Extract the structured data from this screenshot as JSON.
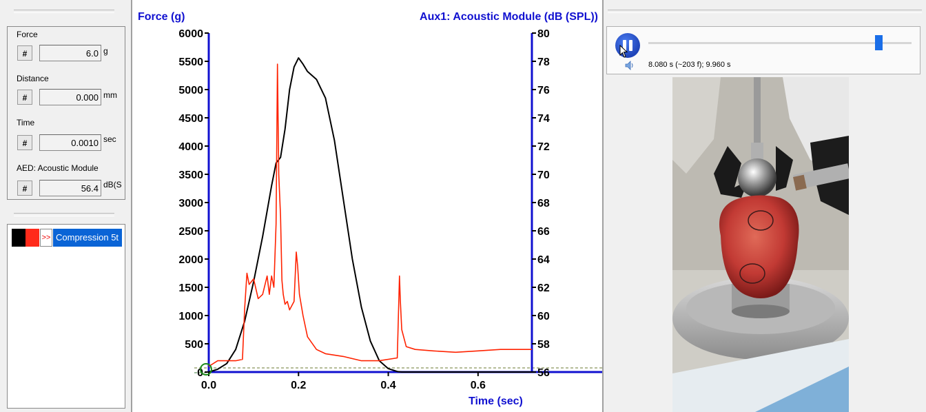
{
  "readouts": [
    {
      "label": "Force",
      "button": "#",
      "value": "6.0",
      "unit": "g"
    },
    {
      "label": "Distance",
      "button": "#",
      "value": "0.000",
      "unit": "mm"
    },
    {
      "label": "Time",
      "button": "#",
      "value": "0.0010",
      "unit": "sec"
    },
    {
      "label": "AED: Acoustic Module",
      "button": "#",
      "value": "56.4",
      "unit": "dB(S"
    }
  ],
  "test_list": {
    "items": [
      {
        "marker": ">>",
        "label": "Compression 5t"
      }
    ]
  },
  "player": {
    "time_text": "8.080 s (~203 f); 9.960 s",
    "position_fraction": 0.87
  },
  "colors": {
    "force_line": "#000000",
    "acoustic_line": "#ff2200",
    "axis": "#1010d0",
    "selection": "#0a64d6"
  },
  "chart_data": {
    "type": "line",
    "title_left": "Force (g)",
    "title_right": "Aux1: Acoustic Module (dB (SPL))",
    "xlabel": "Time (sec)",
    "xlim": [
      0,
      0.72
    ],
    "x_ticks": [
      "0.0",
      "0.2",
      "0.4",
      "0.6"
    ],
    "y_left_ticks": [
      "0",
      "500",
      "1000",
      "1500",
      "2000",
      "2500",
      "3000",
      "3500",
      "4000",
      "4500",
      "5000",
      "5500",
      "6000"
    ],
    "y_left_lim": [
      0,
      6000
    ],
    "y_right_ticks": [
      "56",
      "58",
      "60",
      "62",
      "64",
      "66",
      "68",
      "70",
      "72",
      "74",
      "76",
      "78",
      "80"
    ],
    "y_right_lim": [
      56,
      80
    ],
    "series": [
      {
        "axis": "left",
        "color": "#000000",
        "x": [
          0.0,
          0.02,
          0.04,
          0.06,
          0.08,
          0.1,
          0.12,
          0.14,
          0.15,
          0.155,
          0.16,
          0.17,
          0.18,
          0.19,
          0.2,
          0.21,
          0.22,
          0.24,
          0.26,
          0.28,
          0.3,
          0.32,
          0.34,
          0.36,
          0.38,
          0.4,
          0.42,
          0.43,
          0.72
        ],
        "y": [
          0,
          50,
          150,
          400,
          900,
          1600,
          2400,
          3300,
          3700,
          3750,
          3800,
          4300,
          5000,
          5400,
          5560,
          5450,
          5320,
          5180,
          4850,
          4100,
          3050,
          2000,
          1150,
          550,
          200,
          60,
          10,
          0,
          0
        ]
      },
      {
        "axis": "right",
        "color": "#ff2200",
        "x": [
          0.0,
          0.01,
          0.02,
          0.04,
          0.06,
          0.075,
          0.08,
          0.085,
          0.09,
          0.1,
          0.11,
          0.12,
          0.13,
          0.135,
          0.14,
          0.145,
          0.15,
          0.153,
          0.156,
          0.16,
          0.163,
          0.166,
          0.17,
          0.175,
          0.18,
          0.19,
          0.195,
          0.198,
          0.202,
          0.21,
          0.22,
          0.24,
          0.26,
          0.3,
          0.34,
          0.38,
          0.42,
          0.425,
          0.427,
          0.43,
          0.44,
          0.46,
          0.5,
          0.55,
          0.6,
          0.65,
          0.7,
          0.72
        ],
        "y": [
          56.4,
          56.6,
          56.8,
          56.8,
          56.8,
          56.9,
          60.5,
          63.0,
          62.2,
          62.6,
          61.2,
          61.5,
          62.8,
          61.5,
          62.8,
          62.0,
          66.5,
          77.8,
          70.0,
          67.0,
          62.5,
          61.5,
          60.8,
          61.0,
          60.4,
          61.0,
          64.5,
          63.5,
          61.5,
          60.0,
          58.5,
          57.6,
          57.3,
          57.1,
          56.8,
          56.8,
          57.0,
          62.8,
          61.0,
          59.0,
          57.8,
          57.6,
          57.5,
          57.4,
          57.5,
          57.6,
          57.6,
          57.6
        ]
      }
    ]
  }
}
